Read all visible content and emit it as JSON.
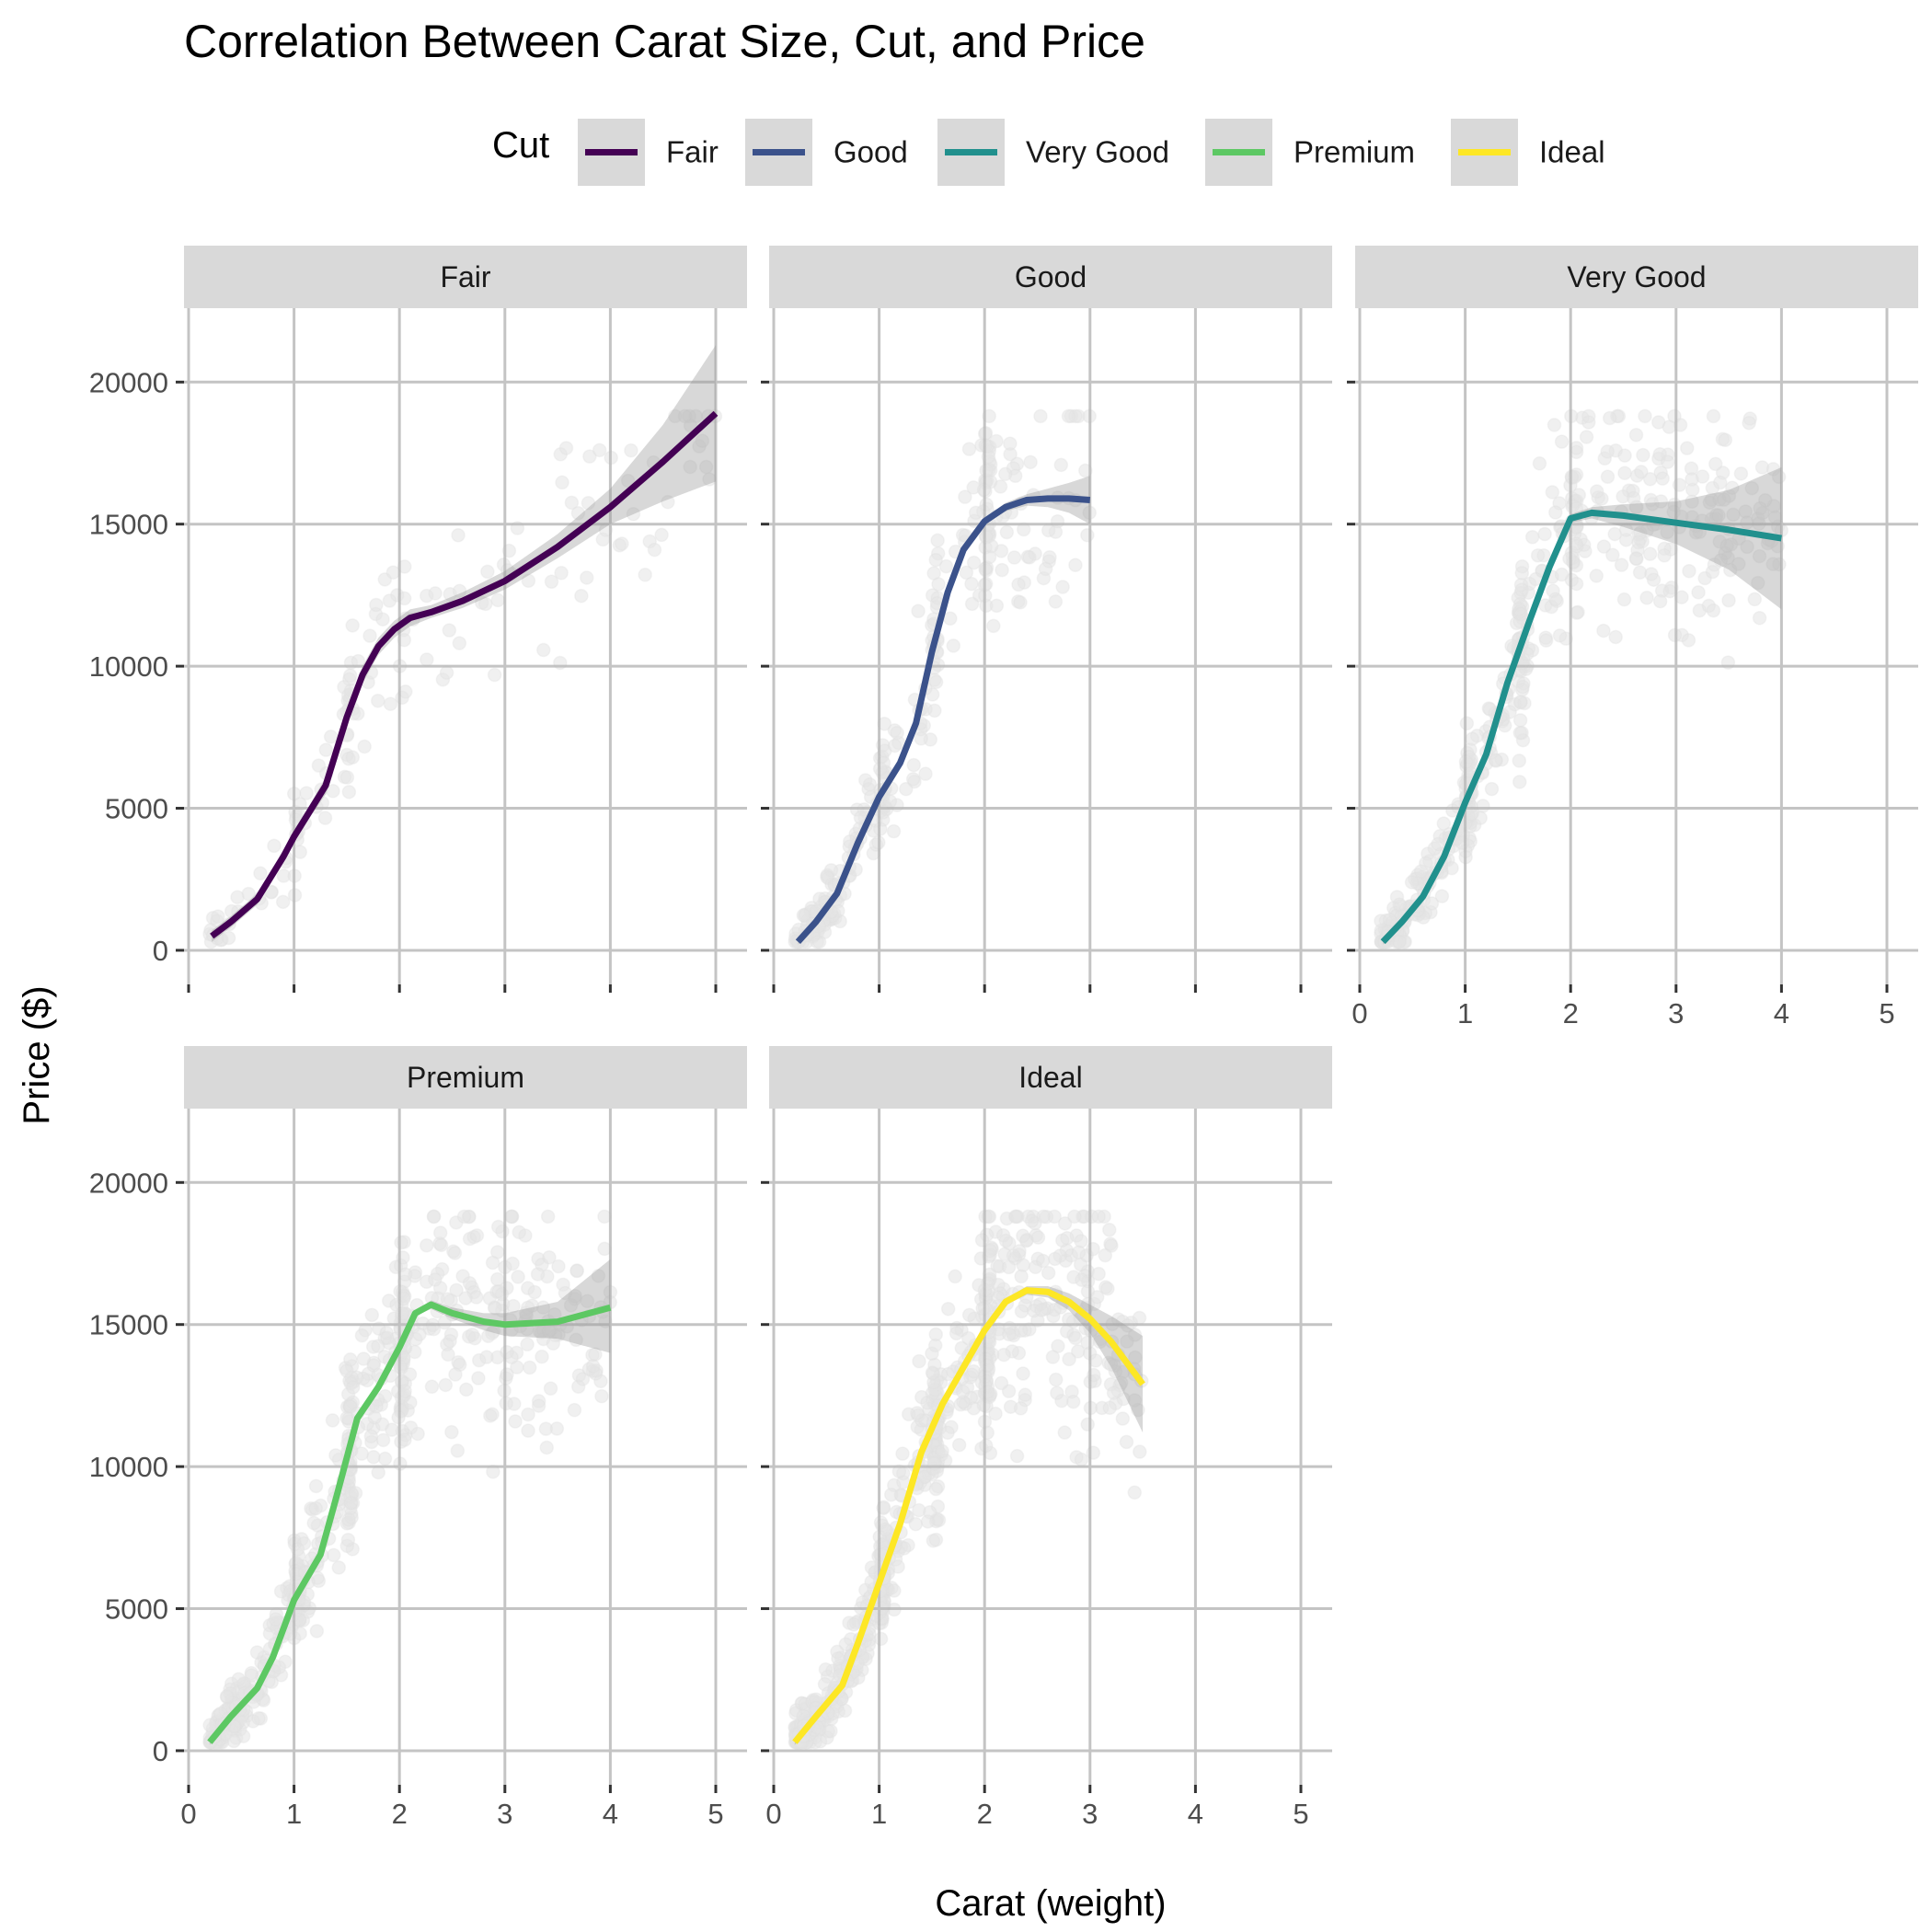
{
  "chart_data": {
    "type": "scatter",
    "title": "Correlation Between Carat Size, Cut, and Price",
    "xlabel": "Carat (weight)",
    "ylabel": "Price ($)",
    "xlim": [
      0,
      5
    ],
    "ylim": [
      0,
      20000
    ],
    "x_ticks": [
      "0",
      "1",
      "2",
      "3",
      "4",
      "5"
    ],
    "y_ticks": [
      "0",
      "5000",
      "10000",
      "15000",
      "20000"
    ],
    "grid": true,
    "legend": {
      "title": "Cut",
      "placement": "top",
      "entries": [
        "Fair",
        "Good",
        "Very Good",
        "Premium",
        "Ideal"
      ]
    },
    "series": [
      {
        "name": "Fair",
        "color": "#440154",
        "smooth_x": [
          0.22,
          0.4,
          0.65,
          0.9,
          1.0,
          1.1,
          1.3,
          1.5,
          1.65,
          1.8,
          1.95,
          2.1,
          2.3,
          2.6,
          3.0,
          3.5,
          4.0,
          4.5,
          5.0
        ],
        "smooth_y": [
          500,
          1000,
          1800,
          3300,
          4000,
          4600,
          5800,
          8200,
          9700,
          10700,
          11300,
          11700,
          11900,
          12300,
          13000,
          14200,
          15600,
          17200,
          18900
        ],
        "band_lower": [
          300,
          800,
          1600,
          3100,
          3800,
          4400,
          5500,
          7900,
          9400,
          10400,
          11000,
          11400,
          11700,
          12050,
          12700,
          13800,
          15000,
          15800,
          16500
        ],
        "band_upper": [
          700,
          1200,
          2000,
          3500,
          4200,
          4800,
          6100,
          8500,
          10000,
          11000,
          11600,
          12000,
          12150,
          12600,
          13350,
          14650,
          16250,
          18500,
          21300
        ]
      },
      {
        "name": "Good",
        "color": "#3b528b",
        "smooth_x": [
          0.23,
          0.4,
          0.6,
          0.8,
          1.0,
          1.2,
          1.35,
          1.5,
          1.65,
          1.8,
          2.0,
          2.2,
          2.4,
          2.6,
          2.8,
          3.0
        ],
        "smooth_y": [
          300,
          1000,
          2000,
          3800,
          5400,
          6600,
          8000,
          10500,
          12600,
          14100,
          15100,
          15600,
          15850,
          15900,
          15900,
          15850
        ],
        "band_lower": [
          200,
          900,
          1900,
          3700,
          5300,
          6500,
          7900,
          10400,
          12500,
          14000,
          15000,
          15450,
          15650,
          15600,
          15400,
          15000
        ],
        "band_upper": [
          400,
          1100,
          2100,
          3900,
          5500,
          6700,
          8100,
          10600,
          12700,
          14200,
          15200,
          15750,
          16050,
          16250,
          16450,
          16700
        ]
      },
      {
        "name": "Very Good",
        "color": "#21908d",
        "smooth_x": [
          0.22,
          0.4,
          0.6,
          0.8,
          1.0,
          1.2,
          1.4,
          1.6,
          1.8,
          2.0,
          2.2,
          2.5,
          3.0,
          3.5,
          4.0
        ],
        "smooth_y": [
          300,
          1000,
          1900,
          3300,
          5200,
          6900,
          9400,
          11500,
          13500,
          15200,
          15400,
          15300,
          15050,
          14800,
          14500
        ],
        "band_lower": [
          200,
          900,
          1800,
          3200,
          5100,
          6800,
          9300,
          11400,
          13400,
          15050,
          15200,
          14900,
          14300,
          13400,
          12000
        ],
        "band_upper": [
          400,
          1100,
          2000,
          3400,
          5300,
          7000,
          9500,
          11600,
          13600,
          15350,
          15600,
          15700,
          15800,
          16200,
          17000
        ]
      },
      {
        "name": "Premium",
        "color": "#5dc863",
        "smooth_x": [
          0.2,
          0.4,
          0.65,
          0.8,
          1.0,
          1.25,
          1.4,
          1.6,
          1.8,
          2.0,
          2.15,
          2.3,
          2.5,
          2.8,
          3.0,
          3.5,
          4.0
        ],
        "smooth_y": [
          300,
          1200,
          2200,
          3300,
          5300,
          6900,
          8900,
          11700,
          12800,
          14200,
          15400,
          15700,
          15400,
          15100,
          15000,
          15100,
          15600
        ],
        "band_lower": [
          200,
          1100,
          2100,
          3200,
          5200,
          6800,
          8800,
          11600,
          12700,
          14100,
          15300,
          15550,
          15200,
          14800,
          14600,
          14500,
          14000
        ],
        "band_upper": [
          400,
          1300,
          2300,
          3400,
          5400,
          7000,
          9000,
          11800,
          12900,
          14300,
          15500,
          15850,
          15600,
          15400,
          15400,
          15800,
          17300
        ]
      },
      {
        "name": "Ideal",
        "color": "#fde725",
        "smooth_x": [
          0.2,
          0.4,
          0.65,
          0.8,
          1.0,
          1.2,
          1.4,
          1.6,
          1.8,
          2.0,
          2.2,
          2.4,
          2.6,
          2.8,
          3.0,
          3.2,
          3.5
        ],
        "smooth_y": [
          300,
          1200,
          2300,
          3800,
          5900,
          8000,
          10500,
          12200,
          13500,
          14800,
          15800,
          16200,
          16150,
          15800,
          15200,
          14400,
          12900
        ],
        "band_lower": [
          200,
          1100,
          2200,
          3700,
          5800,
          7900,
          10400,
          12100,
          13400,
          14700,
          15700,
          16050,
          15950,
          15500,
          14700,
          13500,
          11200
        ],
        "band_upper": [
          400,
          1300,
          2400,
          3900,
          6000,
          8100,
          10600,
          12300,
          13600,
          14900,
          15900,
          16350,
          16350,
          16100,
          15700,
          15300,
          14600
        ]
      }
    ]
  }
}
